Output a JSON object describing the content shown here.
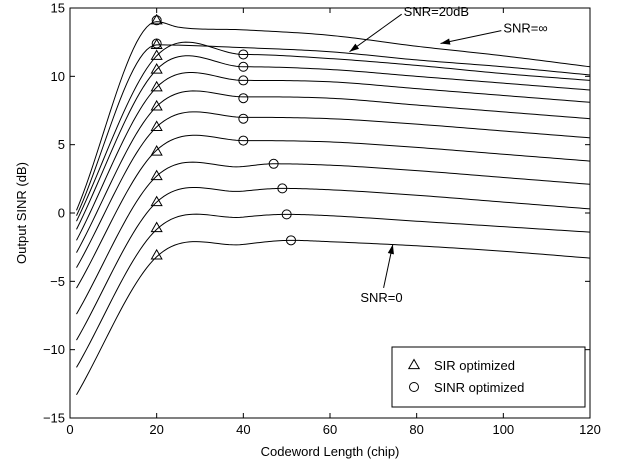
{
  "chart_data": {
    "type": "line",
    "xlabel": "Codeword Length (chip)",
    "ylabel": "Output SINR (dB)",
    "xlim": [
      0,
      120
    ],
    "ylim": [
      -15,
      15
    ],
    "xticks": [
      0,
      20,
      40,
      60,
      80,
      100,
      120
    ],
    "yticks": [
      -15,
      -10,
      -5,
      0,
      5,
      10,
      15
    ],
    "xtick_labels": [
      "0",
      "20",
      "40",
      "60",
      "80",
      "100",
      "120"
    ],
    "ytick_labels": [
      "−15",
      "−10",
      "−5",
      "0",
      "5",
      "10",
      "15"
    ],
    "grid": false,
    "legend_position": "bottom-right",
    "legend": [
      {
        "marker": "triangle",
        "label": "SIR optimized"
      },
      {
        "marker": "circle",
        "label": "SINR optimized"
      }
    ],
    "annotations": [
      {
        "text": "SNR=20dB",
        "text_at": [
          77,
          14.4
        ],
        "arrow_to": [
          64.5,
          11.8
        ]
      },
      {
        "text": "SNR=∞",
        "text_at": [
          100,
          13.2
        ],
        "arrow_to": [
          85.5,
          12.4
        ]
      },
      {
        "text": "SNR=0",
        "text_at": [
          67,
          -6.5
        ],
        "arrow_to": [
          74.5,
          -2.3
        ]
      }
    ],
    "series": [
      {
        "values": [
          [
            1.5,
            -13.3
          ],
          [
            20,
            -3.2
          ],
          [
            40,
            -2.3
          ],
          [
            51,
            -2.0
          ],
          [
            60,
            -2.1
          ],
          [
            80,
            -2.4
          ],
          [
            100,
            -2.8
          ],
          [
            120,
            -3.3
          ]
        ]
      },
      {
        "values": [
          [
            1.5,
            -11.3
          ],
          [
            20,
            -1.2
          ],
          [
            40,
            -0.3
          ],
          [
            50,
            -0.1
          ],
          [
            60,
            -0.2
          ],
          [
            80,
            -0.6
          ],
          [
            100,
            -1.0
          ],
          [
            120,
            -1.4
          ]
        ]
      },
      {
        "values": [
          [
            1.5,
            -9.3
          ],
          [
            20,
            0.8
          ],
          [
            40,
            1.6
          ],
          [
            49,
            1.8
          ],
          [
            60,
            1.7
          ],
          [
            80,
            1.3
          ],
          [
            100,
            0.8
          ],
          [
            120,
            0.3
          ]
        ]
      },
      {
        "values": [
          [
            1.5,
            -7.4
          ],
          [
            20,
            2.7
          ],
          [
            40,
            3.4
          ],
          [
            47,
            3.6
          ],
          [
            60,
            3.5
          ],
          [
            80,
            3.1
          ],
          [
            100,
            2.6
          ],
          [
            120,
            2.1
          ]
        ]
      },
      {
        "values": [
          [
            1.5,
            -5.5
          ],
          [
            20,
            4.6
          ],
          [
            40,
            5.3
          ],
          [
            60,
            5.2
          ],
          [
            80,
            4.8
          ],
          [
            100,
            4.3
          ],
          [
            120,
            3.8
          ]
        ]
      },
      {
        "values": [
          [
            1.5,
            -4.0
          ],
          [
            20,
            6.3
          ],
          [
            40,
            7.0
          ],
          [
            60,
            6.9
          ],
          [
            80,
            6.5
          ],
          [
            100,
            6.0
          ],
          [
            120,
            5.5
          ]
        ]
      },
      {
        "values": [
          [
            1.5,
            -2.9
          ],
          [
            20,
            7.8
          ],
          [
            40,
            8.5
          ],
          [
            60,
            8.4
          ],
          [
            80,
            7.9
          ],
          [
            100,
            7.4
          ],
          [
            120,
            6.9
          ]
        ]
      },
      {
        "values": [
          [
            1.5,
            -2.0
          ],
          [
            20,
            9.2
          ],
          [
            40,
            9.7
          ],
          [
            60,
            9.6
          ],
          [
            80,
            9.1
          ],
          [
            100,
            8.6
          ],
          [
            120,
            8.1
          ]
        ]
      },
      {
        "values": [
          [
            1.5,
            -1.2
          ],
          [
            20,
            10.5
          ],
          [
            40,
            10.7
          ],
          [
            60,
            10.5
          ],
          [
            80,
            10.0
          ],
          [
            100,
            9.5
          ],
          [
            120,
            9.0
          ]
        ]
      },
      {
        "values": [
          [
            1.5,
            -0.6
          ],
          [
            20,
            11.5
          ],
          [
            40,
            11.6
          ],
          [
            60,
            11.3
          ],
          [
            80,
            10.8
          ],
          [
            100,
            10.2
          ],
          [
            120,
            9.7
          ]
        ]
      },
      {
        "values": [
          [
            1.5,
            -0.2
          ],
          [
            20,
            12.3
          ],
          [
            40,
            12.1
          ],
          [
            60,
            11.8
          ],
          [
            80,
            11.2
          ],
          [
            100,
            10.7
          ],
          [
            120,
            10.1
          ]
        ]
      },
      {
        "values": [
          [
            1.5,
            0.2
          ],
          [
            20,
            14.0
          ],
          [
            25,
            13.6
          ],
          [
            40,
            13.4
          ],
          [
            60,
            13.0
          ],
          [
            80,
            12.2
          ],
          [
            100,
            11.5
          ],
          [
            120,
            10.7
          ]
        ]
      }
    ],
    "sir_optimized_points": [
      [
        20,
        -3.1
      ],
      [
        20,
        -1.1
      ],
      [
        20,
        0.8
      ],
      [
        20,
        2.7
      ],
      [
        20,
        4.5
      ],
      [
        20,
        6.3
      ],
      [
        20,
        7.8
      ],
      [
        20,
        9.2
      ],
      [
        20,
        10.5
      ],
      [
        20,
        11.5
      ],
      [
        20,
        12.3
      ],
      [
        20,
        14.1
      ]
    ],
    "sinr_optimized_points": [
      [
        51,
        -2.0
      ],
      [
        50,
        -0.1
      ],
      [
        49,
        1.8
      ],
      [
        47,
        3.6
      ],
      [
        40,
        5.3
      ],
      [
        40,
        6.9
      ],
      [
        40,
        8.4
      ],
      [
        40,
        9.7
      ],
      [
        40,
        10.7
      ],
      [
        40,
        11.6
      ],
      [
        20,
        12.4
      ],
      [
        20,
        14.1
      ]
    ]
  }
}
